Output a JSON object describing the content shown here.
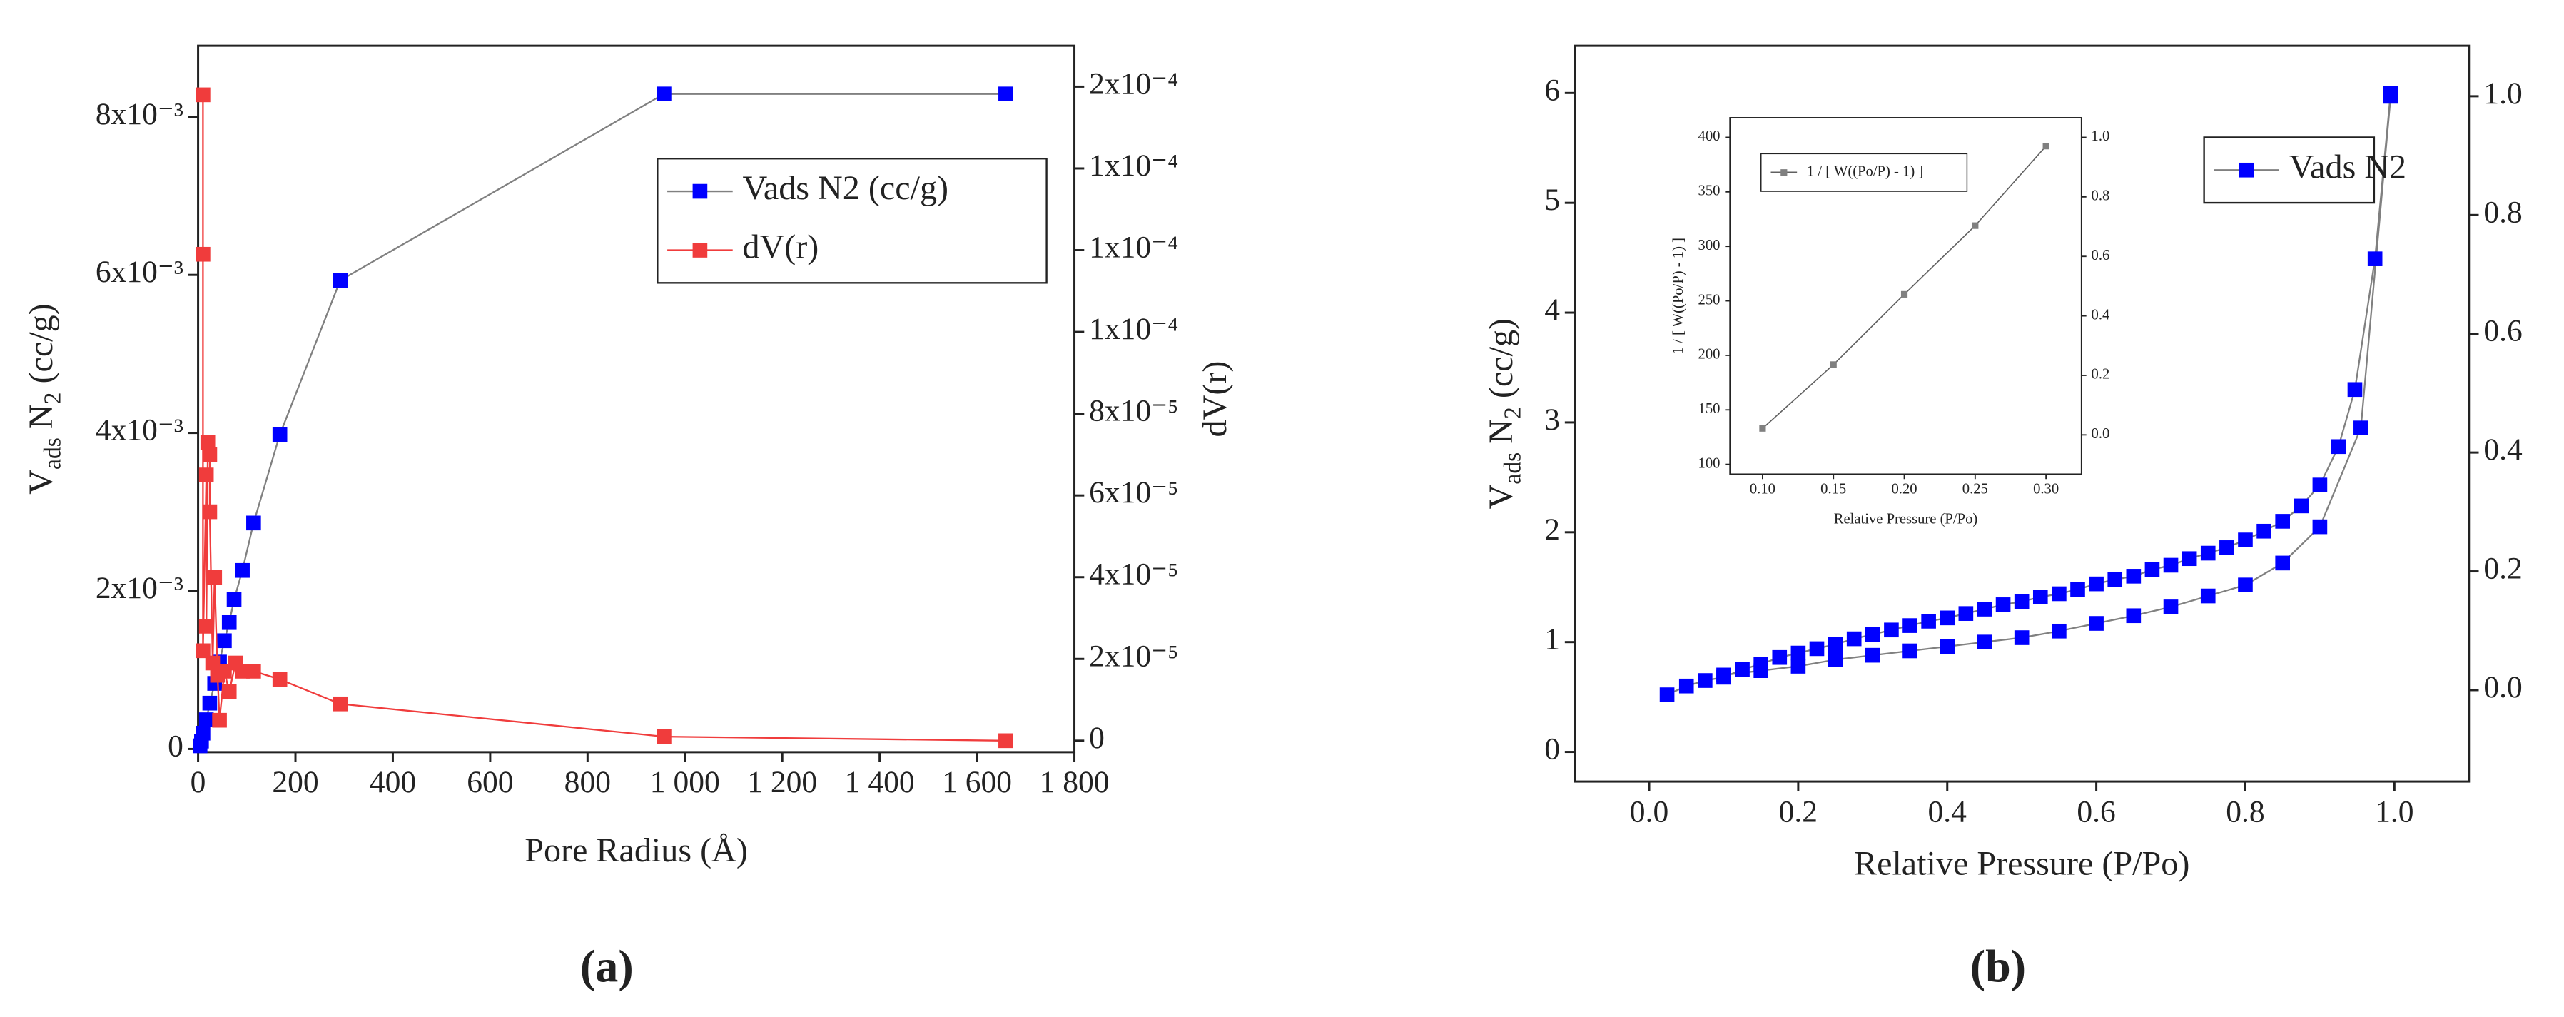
{
  "chart_data": [
    {
      "type": "line",
      "panel_label": "(a)",
      "x_label": "Pore Radius (Å)",
      "y_label": [
        "V",
        "ads",
        " N",
        "2",
        " (cc/g)"
      ],
      "y2_label": "dV(r)",
      "xlim": [
        0,
        1800
      ],
      "xticks": [
        0,
        200,
        400,
        600,
        800,
        {
          "value": 1000,
          "label": "1 000"
        },
        {
          "value": 1200,
          "label": "1 200"
        },
        {
          "value": 1400,
          "label": "1 400"
        },
        {
          "value": 1600,
          "label": "1 600"
        },
        {
          "value": 1800,
          "label": "1 800"
        }
      ],
      "ylim": [
        -4e-05,
        0.0089
      ],
      "yticks": [
        0,
        {
          "value": 0.002,
          "label": "2x10⁻³"
        },
        {
          "value": 0.004,
          "label": "4x10⁻³"
        },
        {
          "value": 0.006,
          "label": "6x10⁻³"
        },
        {
          "value": 0.008,
          "label": "8x10⁻³"
        }
      ],
      "y2lim": [
        -2.8e-06,
        0.00017
      ],
      "y2ticks": [
        0,
        {
          "value": 2e-05,
          "label": "2x10⁻⁵"
        },
        {
          "value": 4e-05,
          "label": "4x10⁻⁵"
        },
        {
          "value": 6e-05,
          "label": "6x10⁻⁵"
        },
        {
          "value": 8e-05,
          "label": "8x10⁻⁵"
        },
        {
          "value": 0.0001,
          "label": "1x10⁻⁴"
        },
        {
          "value": 0.00012,
          "label": "1x10⁻⁴"
        },
        {
          "value": 0.00014,
          "label": "1x10⁻⁴"
        },
        {
          "value": 0.00016,
          "label": "2x10⁻⁴"
        }
      ],
      "legend": "upper right",
      "series": [
        {
          "name": "Vads N2 (cc/g)",
          "color": "#0000ff",
          "line_color": "#808080",
          "x": [
            4,
            7,
            10,
            17,
            24,
            34,
            44,
            54,
            64,
            74,
            91,
            114,
            168,
            292,
            957,
            1659
          ],
          "values": [
            4e-05,
            0.0001,
            0.0002,
            0.00037,
            0.00058,
            0.00083,
            0.0011,
            0.00137,
            0.0016,
            0.00189,
            0.00226,
            0.00286,
            0.00398,
            0.00593,
            0.00829,
            0.00829
          ]
        },
        {
          "name": "dV(r)",
          "color": "#f03c3c",
          "line_color": "#f03c3c",
          "axis": "y2",
          "x": [
            10,
            10,
            10,
            17,
            17,
            20,
            24,
            24,
            30,
            34,
            40,
            44,
            54,
            64,
            77,
            91,
            114,
            168,
            292,
            957,
            1659
          ],
          "values": [
            0.000158,
            0.000119,
            2.2e-05,
            6.5e-05,
            2.8e-05,
            7.3e-05,
            7e-05,
            5.6e-05,
            1.9e-05,
            4e-05,
            1.6e-05,
            5e-06,
            1.7e-05,
            1.2e-05,
            1.9e-05,
            1.7e-05,
            1.7e-05,
            1.5e-05,
            9e-06,
            1e-06,
            0
          ]
        }
      ]
    },
    {
      "type": "line",
      "panel_label": "(b)",
      "x_label": "Relative Pressure (P/Po)",
      "y_label": [
        "V",
        "ads",
        " N",
        "2",
        " (cc/g)"
      ],
      "xlim": [
        -0.1,
        1.1
      ],
      "xticks": [
        {
          "value": 0,
          "label": "0.0"
        },
        0.2,
        0.4,
        0.6,
        0.8,
        {
          "value": 1,
          "label": "1.0"
        }
      ],
      "ylim": [
        -0.27,
        6.43
      ],
      "yticks": [
        0,
        1,
        2,
        3,
        4,
        5,
        6
      ],
      "y2lim": [
        -0.154,
        1.085
      ],
      "y2ticks": [
        {
          "value": 0,
          "label": "0.0"
        },
        0.2,
        0.4,
        0.6,
        0.8,
        {
          "value": 1,
          "label": "1.0"
        }
      ],
      "legend": "upper right",
      "series": [
        {
          "name": "Vads N2",
          "color": "#0000ff",
          "line_color": "#808080",
          "x": [
            0.024,
            0.05,
            0.075,
            0.1,
            0.125,
            0.15,
            0.175,
            0.2,
            0.225,
            0.25,
            0.275,
            0.3,
            0.325,
            0.35,
            0.375,
            0.4,
            0.425,
            0.45,
            0.475,
            0.5,
            0.525,
            0.55,
            0.575,
            0.6,
            0.625,
            0.65,
            0.675,
            0.7,
            0.725,
            0.75,
            0.775,
            0.8,
            0.825,
            0.85,
            0.875,
            0.9,
            0.925,
            0.947,
            0.974,
            0.995,
            0.995,
            0.955,
            0.9,
            0.85,
            0.8,
            0.75,
            0.7,
            0.65,
            0.6,
            0.55,
            0.5,
            0.45,
            0.4,
            0.35,
            0.3,
            0.25,
            0.2,
            0.15,
            0.1
          ],
          "values": [
            0.52,
            0.6,
            0.65,
            0.68,
            0.75,
            0.8,
            0.86,
            0.9,
            0.94,
            0.98,
            1.03,
            1.07,
            1.11,
            1.15,
            1.19,
            1.22,
            1.26,
            1.3,
            1.34,
            1.37,
            1.41,
            1.44,
            1.48,
            1.53,
            1.57,
            1.6,
            1.66,
            1.7,
            1.76,
            1.81,
            1.86,
            1.93,
            2.01,
            2.1,
            2.24,
            2.43,
            2.78,
            3.3,
            4.49,
            6.0,
            5.97,
            2.95,
            2.05,
            1.72,
            1.52,
            1.42,
            1.32,
            1.24,
            1.17,
            1.1,
            1.04,
            1.0,
            0.96,
            0.92,
            0.88,
            0.84,
            0.78,
            0.74,
            0.7
          ]
        }
      ]
    },
    {
      "type": "line",
      "x_label": "Relative Pressure (P/Po)",
      "y_label": [
        "1 / [ W((Po/P) - 1) ]"
      ],
      "xlim": [
        0.077,
        0.325
      ],
      "xticks": [
        {
          "value": 0.1,
          "label": "0.10"
        },
        0.15,
        {
          "value": 0.2,
          "label": "0.20"
        },
        0.25,
        {
          "value": 0.3,
          "label": "0.30"
        }
      ],
      "ylim": [
        91,
        418
      ],
      "yticks": [
        100,
        150,
        200,
        250,
        300,
        350,
        400
      ],
      "y2lim": [
        -0.132,
        1.066
      ],
      "y2ticks": [
        {
          "value": 0,
          "label": "0.0"
        },
        0.2,
        0.4,
        0.6,
        0.8,
        {
          "value": 1,
          "label": "1.0"
        }
      ],
      "legend": "upper left",
      "series": [
        {
          "name": "1 / [ W((Po/P) - 1) ]",
          "color": "#808080",
          "line_color": "#606060",
          "x": [
            0.1,
            0.15,
            0.2,
            0.25,
            0.3
          ],
          "values": [
            133,
            191.5,
            256,
            319,
            392
          ]
        }
      ]
    }
  ]
}
